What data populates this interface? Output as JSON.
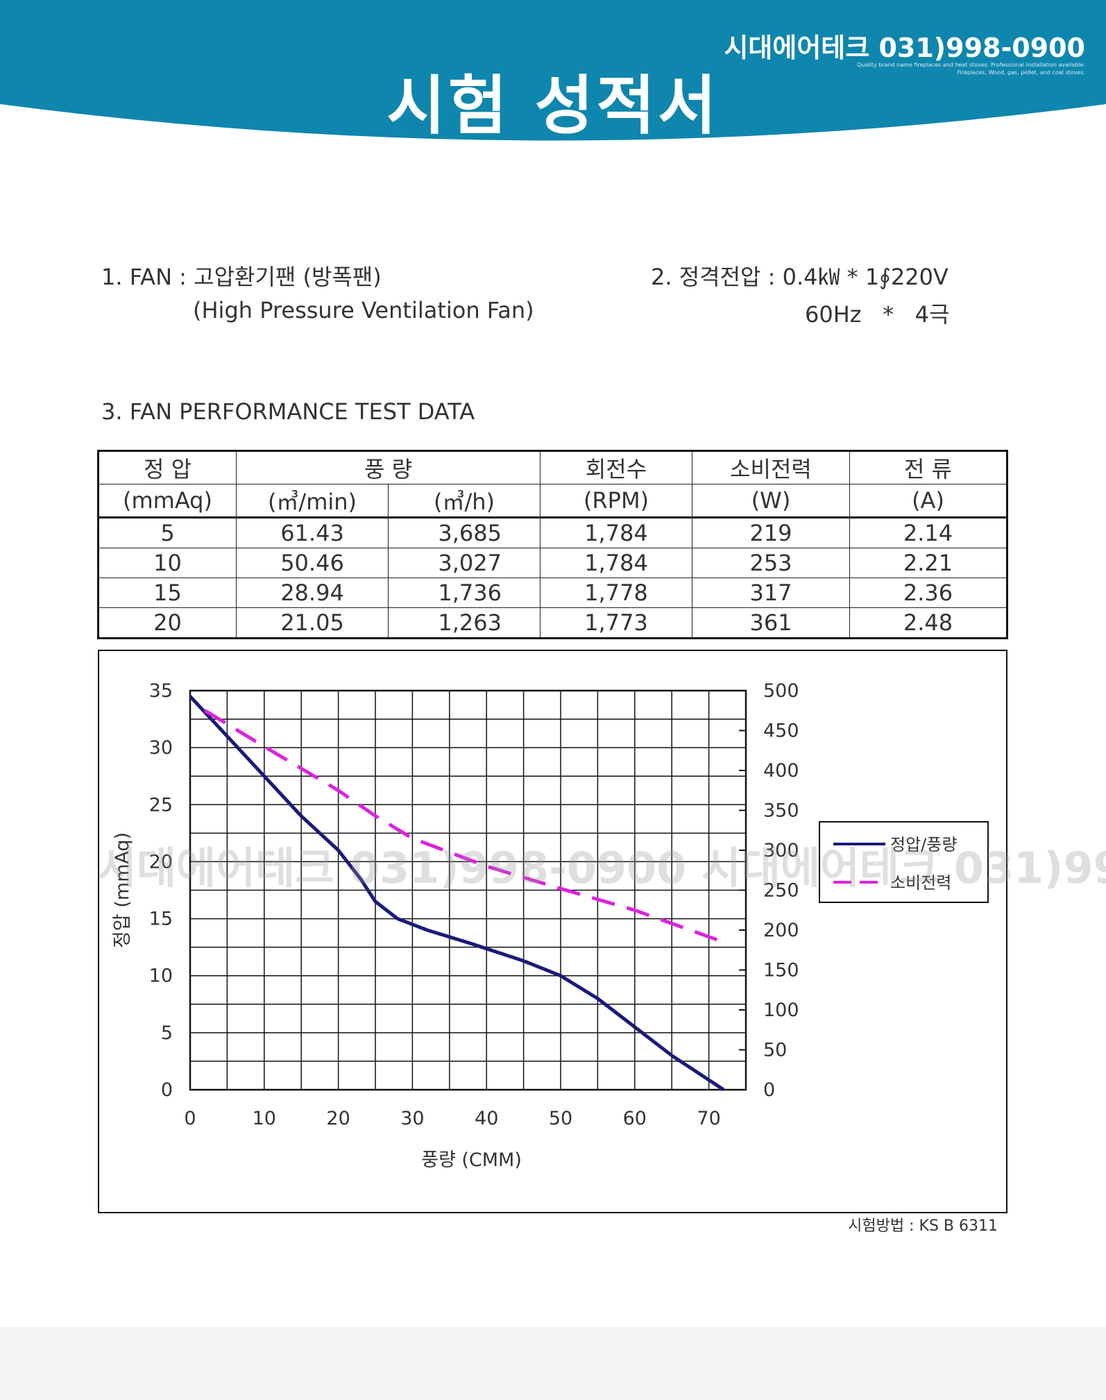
{
  "header": {
    "title": "시험 성적서",
    "brand": "시대에어테크 031)998-0900",
    "brand_desc_line1": "Quality brand name fireplaces and heat stoves. Professional installation available.",
    "brand_desc_line2": "Fireplaces, Wood, gas, pellet, and coal stoves.",
    "accent_color": "#0f86ad"
  },
  "info": {
    "fan_line": "1. FAN : 고압환기팬 (방폭팬)",
    "fan_english": "(High Pressure Ventilation Fan)",
    "voltage_line": "2. 정격전압 : 0.4㎾ * 1∮220V",
    "voltage_line2": "60Hz   *   4극",
    "section_title": "3. FAN PERFORMANCE TEST DATA"
  },
  "table": {
    "header1": {
      "static_pressure": "정 압",
      "airflow": "풍 량",
      "rpm": "회전수",
      "power": "소비전력",
      "current": "전 류"
    },
    "header2": [
      "(mmAq)",
      "(㎥/min)",
      "(㎥/h)",
      "(RPM)",
      "(W)",
      "(A)"
    ],
    "rows": [
      [
        "5",
        "61.43",
        "3,685",
        "1,784",
        "219",
        "2.14"
      ],
      [
        "10",
        "50.46",
        "3,027",
        "1,784",
        "253",
        "2.21"
      ],
      [
        "15",
        "28.94",
        "1,736",
        "1,778",
        "317",
        "2.36"
      ],
      [
        "20",
        "21.05",
        "1,263",
        "1,773",
        "361",
        "2.48"
      ]
    ]
  },
  "chart_data": {
    "type": "line",
    "xlabel": "풍량 (CMM)",
    "ylabel": "정압 (mmAq)",
    "xlim": [
      0,
      75
    ],
    "ylim": [
      0,
      35
    ],
    "y2lim": [
      0,
      500
    ],
    "xticks": [
      "0",
      "10",
      "20",
      "30",
      "40",
      "50",
      "60",
      "70"
    ],
    "yticks": [
      "0",
      "5",
      "10",
      "15",
      "20",
      "25",
      "30",
      "35"
    ],
    "y2ticks": [
      "0",
      "50",
      "100",
      "150",
      "200",
      "250",
      "300",
      "350",
      "400",
      "450",
      "500"
    ],
    "grid": true,
    "legend_position": "right",
    "series": [
      {
        "name": "정압/풍량",
        "axis": "left",
        "color": "#1a1a7a",
        "style": "solid",
        "x": [
          0,
          5,
          10,
          15,
          20,
          23,
          25,
          28,
          32,
          38,
          45,
          50,
          55,
          60,
          65,
          72
        ],
        "y": [
          34.5,
          31,
          27.5,
          24,
          21,
          18.5,
          16.5,
          15,
          14,
          12.8,
          11.3,
          10,
          8,
          5.5,
          3,
          0
        ]
      },
      {
        "name": "소비전력",
        "axis": "right",
        "color": "#dd22dd",
        "style": "dashed",
        "x": [
          2,
          10,
          20,
          25,
          30,
          40,
          50,
          60,
          72
        ],
        "y": [
          475,
          430,
          375,
          343,
          315,
          280,
          252,
          225,
          185
        ]
      }
    ]
  },
  "watermark": "시대에어테크 031)998-0900 시대에어테크 031)998-0900",
  "footer": {
    "test_method": "시험방법 : KS B 6311"
  }
}
